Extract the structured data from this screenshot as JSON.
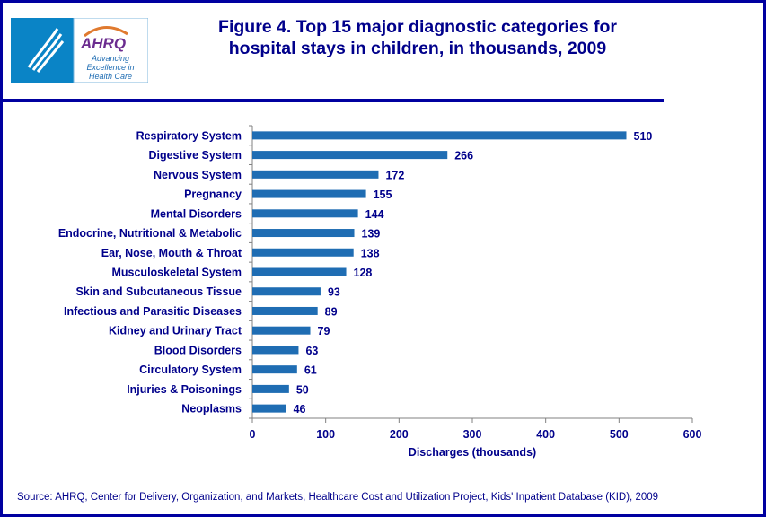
{
  "title_line1": "Figure 4. Top 15 major diagnostic categories for",
  "title_line2": "hospital stays in children, in thousands, 2009",
  "logo": {
    "text": "AHRQ",
    "tagline": [
      "Advancing",
      "Excellence in",
      "Health Care"
    ]
  },
  "source": "Source:  AHRQ,  Center for Delivery, Organization, and Markets, Healthcare Cost and Utilization Project, Kids' Inpatient Database (KID), 2009",
  "colors": {
    "bar": "#1F6DB3",
    "text": "#00008B",
    "frame": "#0000A0"
  },
  "chart_data": {
    "type": "bar",
    "orientation": "horizontal",
    "categories": [
      "Respiratory System",
      "Digestive System",
      "Nervous System",
      "Pregnancy",
      "Mental Disorders",
      "Endocrine, Nutritional & Metabolic",
      "Ear, Nose, Mouth & Throat",
      "Musculoskeletal System",
      "Skin and Subcutaneous Tissue",
      "Infectious and Parasitic Diseases",
      "Kidney and Urinary Tract",
      "Blood Disorders",
      "Circulatory System",
      "Injuries & Poisonings",
      "Neoplasms"
    ],
    "values": [
      510,
      266,
      172,
      155,
      144,
      139,
      138,
      128,
      93,
      89,
      79,
      63,
      61,
      50,
      46
    ],
    "xlabel": "Discharges  (thousands)",
    "xlim": [
      0,
      600
    ],
    "xticks": [
      "0",
      "100",
      "200",
      "300",
      "400",
      "500",
      "600"
    ],
    "grid": false,
    "data_labels": true
  }
}
